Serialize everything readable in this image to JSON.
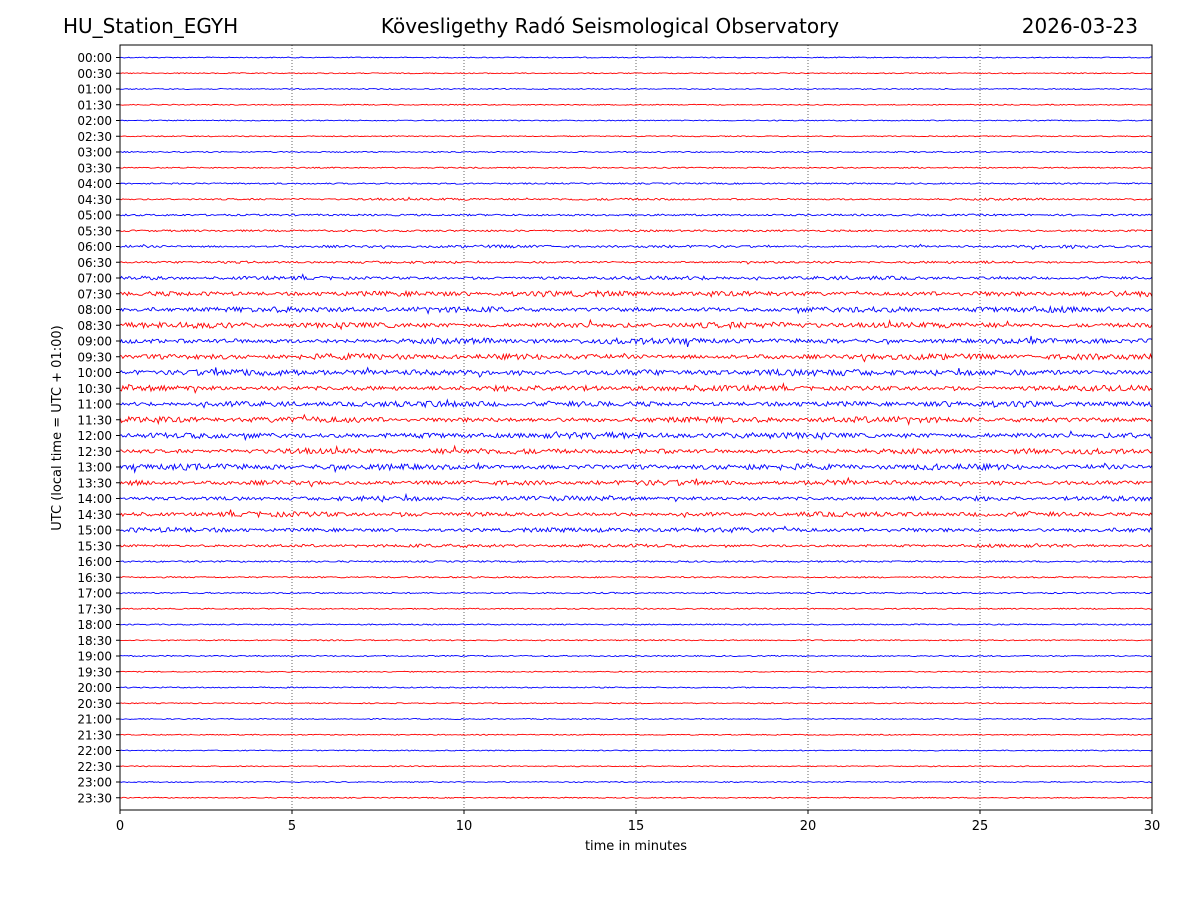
{
  "header": {
    "station": "HU_Station_EGYH",
    "title": "Kövesligethy Radó Seismological Observatory",
    "date": "2026-03-23"
  },
  "chart_data": {
    "type": "line",
    "title": "Kövesligethy Radó Seismological Observatory",
    "xlabel": "time in minutes",
    "ylabel": "UTC (local time = UTC + 01:00)",
    "xlim": [
      0,
      30
    ],
    "xticks": [
      "0",
      "5",
      "10",
      "15",
      "20",
      "25",
      "30"
    ],
    "grid": "vertical dotted at 5-minute ticks",
    "trace_colors": [
      "#0000ff",
      "#ff0000"
    ],
    "series": [
      {
        "name": "00:00",
        "color": "#0000ff",
        "amplitude": 0.5
      },
      {
        "name": "00:30",
        "color": "#ff0000",
        "amplitude": 0.5
      },
      {
        "name": "01:00",
        "color": "#0000ff",
        "amplitude": 0.5
      },
      {
        "name": "01:30",
        "color": "#ff0000",
        "amplitude": 0.5
      },
      {
        "name": "02:00",
        "color": "#0000ff",
        "amplitude": 0.5
      },
      {
        "name": "02:30",
        "color": "#ff0000",
        "amplitude": 0.5
      },
      {
        "name": "03:00",
        "color": "#0000ff",
        "amplitude": 0.6
      },
      {
        "name": "03:30",
        "color": "#ff0000",
        "amplitude": 0.6
      },
      {
        "name": "04:00",
        "color": "#0000ff",
        "amplitude": 0.7
      },
      {
        "name": "04:30",
        "color": "#ff0000",
        "amplitude": 1.2
      },
      {
        "name": "05:00",
        "color": "#0000ff",
        "amplitude": 0.9
      },
      {
        "name": "05:30",
        "color": "#ff0000",
        "amplitude": 0.9
      },
      {
        "name": "06:00",
        "color": "#0000ff",
        "amplitude": 1.5
      },
      {
        "name": "06:30",
        "color": "#ff0000",
        "amplitude": 1.3
      },
      {
        "name": "07:00",
        "color": "#0000ff",
        "amplitude": 2.0
      },
      {
        "name": "07:30",
        "color": "#ff0000",
        "amplitude": 3.0
      },
      {
        "name": "08:00",
        "color": "#0000ff",
        "amplitude": 3.0
      },
      {
        "name": "08:30",
        "color": "#ff0000",
        "amplitude": 3.2
      },
      {
        "name": "09:00",
        "color": "#0000ff",
        "amplitude": 3.2
      },
      {
        "name": "09:30",
        "color": "#ff0000",
        "amplitude": 3.2
      },
      {
        "name": "10:00",
        "color": "#0000ff",
        "amplitude": 3.5
      },
      {
        "name": "10:30",
        "color": "#ff0000",
        "amplitude": 3.2
      },
      {
        "name": "11:00",
        "color": "#0000ff",
        "amplitude": 3.2
      },
      {
        "name": "11:30",
        "color": "#ff0000",
        "amplitude": 3.2
      },
      {
        "name": "12:00",
        "color": "#0000ff",
        "amplitude": 3.4
      },
      {
        "name": "12:30",
        "color": "#ff0000",
        "amplitude": 3.0
      },
      {
        "name": "13:00",
        "color": "#0000ff",
        "amplitude": 3.3
      },
      {
        "name": "13:30",
        "color": "#ff0000",
        "amplitude": 2.8
      },
      {
        "name": "14:00",
        "color": "#0000ff",
        "amplitude": 2.6
      },
      {
        "name": "14:30",
        "color": "#ff0000",
        "amplitude": 2.6
      },
      {
        "name": "15:00",
        "color": "#0000ff",
        "amplitude": 2.6
      },
      {
        "name": "15:30",
        "color": "#ff0000",
        "amplitude": 1.8
      },
      {
        "name": "16:00",
        "color": "#0000ff",
        "amplitude": 0.8
      },
      {
        "name": "16:30",
        "color": "#ff0000",
        "amplitude": 0.7
      },
      {
        "name": "17:00",
        "color": "#0000ff",
        "amplitude": 0.7
      },
      {
        "name": "17:30",
        "color": "#ff0000",
        "amplitude": 0.6
      },
      {
        "name": "18:00",
        "color": "#0000ff",
        "amplitude": 0.6
      },
      {
        "name": "18:30",
        "color": "#ff0000",
        "amplitude": 0.6
      },
      {
        "name": "19:00",
        "color": "#0000ff",
        "amplitude": 0.6
      },
      {
        "name": "19:30",
        "color": "#ff0000",
        "amplitude": 0.5
      },
      {
        "name": "20:00",
        "color": "#0000ff",
        "amplitude": 0.6
      },
      {
        "name": "20:30",
        "color": "#ff0000",
        "amplitude": 0.5
      },
      {
        "name": "21:00",
        "color": "#0000ff",
        "amplitude": 0.5
      },
      {
        "name": "21:30",
        "color": "#ff0000",
        "amplitude": 0.5
      },
      {
        "name": "22:00",
        "color": "#0000ff",
        "amplitude": 0.5
      },
      {
        "name": "22:30",
        "color": "#ff0000",
        "amplitude": 0.5
      },
      {
        "name": "23:00",
        "color": "#0000ff",
        "amplitude": 0.5
      },
      {
        "name": "23:30",
        "color": "#ff0000",
        "amplitude": 0.5
      }
    ]
  }
}
